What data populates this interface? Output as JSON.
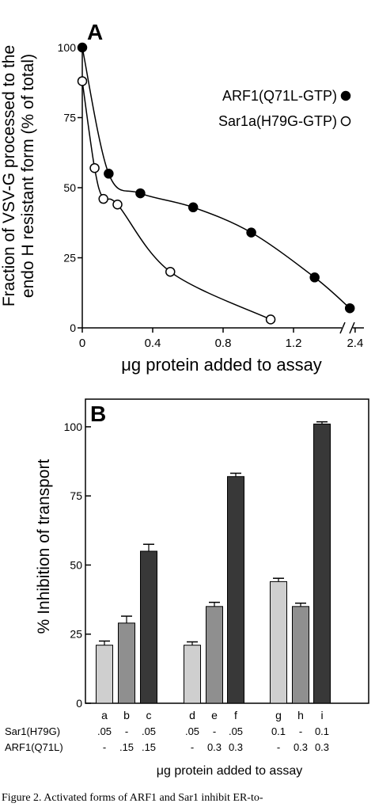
{
  "chart_data": [
    {
      "type": "scatter",
      "panel_label": "A",
      "xlabel": "μg protein added to assay",
      "ylabel_line1": "Fraction of VSV-G processed to the",
      "ylabel_line2": "endo H resistant form (% of total)",
      "x_tick_labels": [
        "0",
        "0.4",
        "0.8",
        "1.2",
        "2.4"
      ],
      "y_tick_labels": [
        "0",
        "25",
        "50",
        "75",
        "100"
      ],
      "xlim": [
        0,
        1.6
      ],
      "ylim": [
        0,
        100
      ],
      "axis_break": "between 1.2 and 2.4",
      "legend_position": "upper-right",
      "series": [
        {
          "name": "ARF1(Q71L-GTP)",
          "marker": "filled-circle",
          "color": "#000000",
          "points": [
            [
              0,
              100
            ],
            [
              0.15,
              55
            ],
            [
              0.33,
              48
            ],
            [
              0.63,
              43
            ],
            [
              0.96,
              34
            ],
            [
              1.32,
              18
            ],
            [
              1.52,
              7
            ]
          ]
        },
        {
          "name": "Sar1a(H79G-GTP)",
          "marker": "open-circle",
          "color": "#ffffff",
          "points": [
            [
              0,
              88
            ],
            [
              0.07,
              57
            ],
            [
              0.12,
              46
            ],
            [
              0.2,
              44
            ],
            [
              0.5,
              20
            ],
            [
              1.07,
              3
            ]
          ]
        }
      ]
    },
    {
      "type": "bar",
      "panel_label": "B",
      "ylabel": "% Inhibition of transport",
      "xlabel": "μg protein added to assay",
      "y_tick_labels": [
        "0",
        "25",
        "50",
        "75",
        "100"
      ],
      "ylim": [
        0,
        110
      ],
      "categories": [
        "a",
        "b",
        "c",
        "d",
        "e",
        "f",
        "g",
        "h",
        "i"
      ],
      "values": [
        21,
        29,
        55,
        21,
        35,
        82,
        44,
        35,
        101
      ],
      "errors": [
        1.5,
        2.5,
        2.5,
        1.2,
        1.5,
        1.2,
        1.2,
        1.2,
        0.8
      ],
      "bar_colors": [
        "#cfcfcf",
        "#8f8f8f",
        "#383838",
        "#cfcfcf",
        "#8f8f8f",
        "#383838",
        "#cfcfcf",
        "#8f8f8f",
        "#383838"
      ],
      "row_labels": [
        "Sar1(H79G)",
        "ARF1(Q71L)"
      ],
      "row_values": [
        [
          ".05",
          "-",
          ".05",
          ".05",
          "-",
          ".05",
          "0.1",
          "-",
          "0.1"
        ],
        [
          "-",
          ".15",
          ".15",
          "-",
          "0.3",
          "0.3",
          "-",
          "0.3",
          "0.3"
        ]
      ]
    }
  ],
  "caption": "Figure 2. Activated forms of ARF1 and Sar1 inhibit ER-to-"
}
